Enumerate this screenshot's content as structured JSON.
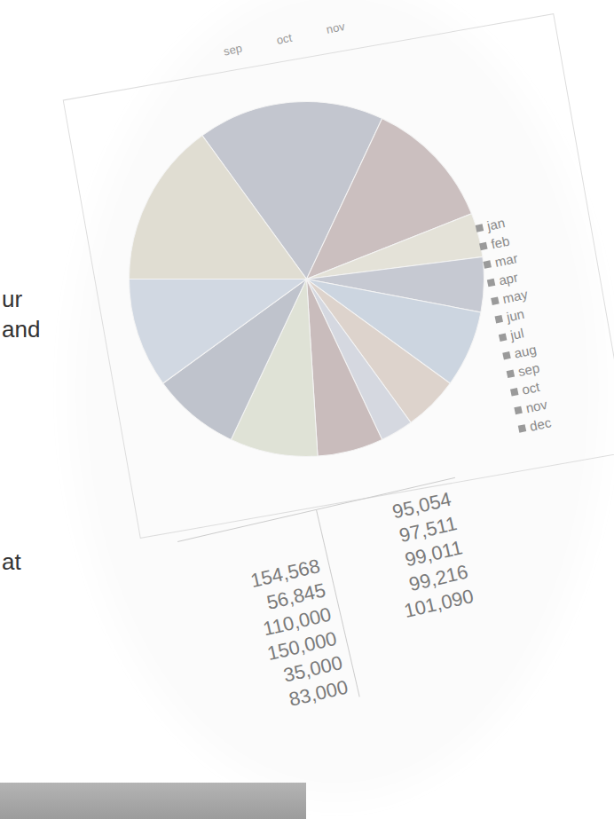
{
  "chart_data": {
    "type": "pie",
    "categories": [
      "jan",
      "feb",
      "mar",
      "apr",
      "may",
      "jun",
      "jul",
      "aug",
      "sep",
      "oct",
      "nov",
      "dec"
    ],
    "values": [
      17,
      12,
      4,
      5,
      7,
      5,
      3,
      6,
      8,
      8,
      10,
      15
    ],
    "colors": [
      "#c3c6cf",
      "#cbbfbf",
      "#e4e2d8",
      "#c6c9d2",
      "#ccd5e0",
      "#ddd3cc",
      "#d5d8e0",
      "#c9bcbc",
      "#dfe2d6",
      "#bfc3cc",
      "#d1d8e2",
      "#e0ddd2"
    ],
    "legend": "right"
  },
  "header": {
    "months": [
      "sep",
      "oct",
      "nov"
    ]
  },
  "table": {
    "columns": [
      [
        "154,568",
        "56,845",
        "110,000",
        "150,000",
        "35,000",
        "83,000"
      ],
      [
        "95,054",
        "97,511",
        "99,011",
        "99,216",
        "101,090"
      ]
    ]
  },
  "slide_text": [
    "ur",
    "and",
    "at"
  ]
}
